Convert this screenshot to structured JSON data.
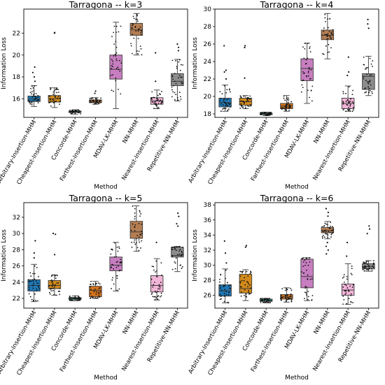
{
  "methods": [
    "Arbitrary-Insertion-MHM",
    "Cheapest-Insertion-MHM",
    "Concorde-MHM",
    "Farthest-Insertion-MHM",
    "MDAV-LK-MHM",
    "NN-MHM",
    "Nearest-Insertion-MHM",
    "Repetitive-NN-MHM"
  ],
  "colors": [
    "#1f77b4",
    "#d28a1c",
    "#1aa085",
    "#d1731d",
    "#c77ec0",
    "#b57e52",
    "#f2b4d8",
    "#8c8c8c"
  ],
  "chart_data": [
    {
      "type": "box",
      "title": "Tarragona -- k=3",
      "xlabel": "Method",
      "ylabel": "Information Loss",
      "ylim": [
        14.3,
        24.2
      ],
      "yticks": [
        16,
        18,
        20,
        22
      ],
      "boxes": [
        {
          "whislo": 15.3,
          "q1": 15.75,
          "med": 16.0,
          "q3": 16.25,
          "whishi": 17.2,
          "fliers": [
            18.0,
            18.4,
            18.9,
            17.6
          ]
        },
        {
          "whislo": 15.2,
          "q1": 15.7,
          "med": 16.0,
          "q3": 16.3,
          "whishi": 17.0,
          "fliers": [
            22.0,
            22.05
          ]
        },
        {
          "whislo": 14.6,
          "q1": 14.75,
          "med": 14.8,
          "q3": 14.88,
          "whishi": 15.0,
          "fliers": []
        },
        {
          "whislo": 15.5,
          "q1": 15.65,
          "med": 15.8,
          "q3": 15.9,
          "whishi": 16.1,
          "fliers": [
            16.5,
            16.7
          ]
        },
        {
          "whislo": 15.1,
          "q1": 17.8,
          "med": 18.7,
          "q3": 20.0,
          "whishi": 23.0,
          "fliers": []
        },
        {
          "whislo": 20.0,
          "q1": 21.8,
          "med": 22.3,
          "q3": 22.9,
          "whishi": 23.8,
          "fliers": []
        },
        {
          "whislo": 15.1,
          "q1": 15.5,
          "med": 15.8,
          "q3": 16.1,
          "whishi": 16.8,
          "fliers": [
            20.2,
            17.6
          ]
        },
        {
          "whislo": 15.8,
          "q1": 17.2,
          "med": 17.6,
          "q3": 18.3,
          "whishi": 19.6,
          "fliers": [
            20.7,
            21.0,
            20.4
          ]
        }
      ]
    },
    {
      "type": "box",
      "title": "Tarragona -- k=4",
      "xlabel": "Method",
      "ylabel": "Information Loss",
      "ylim": [
        17.6,
        30.0
      ],
      "yticks": [
        18,
        20,
        22,
        24,
        26,
        28,
        30
      ],
      "boxes": [
        {
          "whislo": 18.3,
          "q1": 18.8,
          "med": 19.3,
          "q3": 19.8,
          "whishi": 21.3,
          "fliers": [
            22.8,
            23.0,
            25.8,
            22.0
          ]
        },
        {
          "whislo": 18.6,
          "q1": 19.0,
          "med": 19.4,
          "q3": 19.8,
          "whishi": 20.1,
          "fliers": [
            25.6,
            25.8,
            22.1
          ]
        },
        {
          "whislo": 17.8,
          "q1": 17.9,
          "med": 18.0,
          "q3": 18.1,
          "whishi": 18.2,
          "fliers": []
        },
        {
          "whislo": 18.3,
          "q1": 18.6,
          "med": 18.9,
          "q3": 19.2,
          "whishi": 20.1,
          "fliers": []
        },
        {
          "whislo": 19.2,
          "q1": 21.8,
          "med": 23.2,
          "q3": 24.3,
          "whishi": 26.1,
          "fliers": []
        },
        {
          "whislo": 24.3,
          "q1": 26.5,
          "med": 27.0,
          "q3": 27.6,
          "whishi": 29.5,
          "fliers": []
        },
        {
          "whislo": 18.3,
          "q1": 18.6,
          "med": 19.2,
          "q3": 19.8,
          "whishi": 21.2,
          "fliers": [
            24.5,
            22.8,
            22.4
          ]
        },
        {
          "whislo": 20.1,
          "q1": 20.8,
          "med": 22.3,
          "q3": 22.6,
          "whishi": 24.6,
          "fliers": [
            27.8,
            28.3,
            28.8
          ]
        }
      ]
    },
    {
      "type": "box",
      "title": "Tarragona -- k=5",
      "xlabel": "Method",
      "ylabel": "Information Loss",
      "ylim": [
        20.8,
        33.8
      ],
      "yticks": [
        22,
        24,
        26,
        28,
        30,
        32
      ],
      "boxes": [
        {
          "whislo": 21.6,
          "q1": 22.9,
          "med": 23.6,
          "q3": 24.3,
          "whishi": 26.2,
          "fliers": [
            29.1,
            27.6,
            27.0
          ]
        },
        {
          "whislo": 22.4,
          "q1": 23.2,
          "med": 23.6,
          "q3": 24.2,
          "whishi": 24.9,
          "fliers": [
            29.9,
            30.0,
            27.4
          ]
        },
        {
          "whislo": 21.7,
          "q1": 21.85,
          "med": 22.0,
          "q3": 22.1,
          "whishi": 22.3,
          "fliers": []
        },
        {
          "whislo": 22.0,
          "q1": 22.2,
          "med": 23.0,
          "q3": 23.5,
          "whishi": 24.1,
          "fliers": []
        },
        {
          "whislo": 22.9,
          "q1": 25.4,
          "med": 26.1,
          "q3": 27.1,
          "whishi": 28.9,
          "fliers": []
        },
        {
          "whislo": 27.8,
          "q1": 29.4,
          "med": 30.2,
          "q3": 31.5,
          "whishi": 33.4,
          "fliers": []
        },
        {
          "whislo": 21.8,
          "q1": 22.8,
          "med": 23.6,
          "q3": 24.8,
          "whishi": 26.9,
          "fliers": [
            28.9
          ]
        },
        {
          "whislo": 25.3,
          "q1": 27.1,
          "med": 27.3,
          "q3": 28.3,
          "whishi": 28.4,
          "fliers": [
            31.2,
            32.1,
            32.5,
            30.9
          ]
        }
      ]
    },
    {
      "type": "box",
      "title": "Tarragona -- k=6",
      "xlabel": "Method",
      "ylabel": "Information Loss",
      "ylim": [
        24.3,
        38.3
      ],
      "yticks": [
        26,
        28,
        30,
        32,
        34,
        36,
        38
      ],
      "boxes": [
        {
          "whislo": 25.0,
          "q1": 25.9,
          "med": 26.6,
          "q3": 27.4,
          "whishi": 29.5,
          "fliers": [
            31.6,
            33.2,
            30.3
          ]
        },
        {
          "whislo": 25.3,
          "q1": 26.3,
          "med": 26.9,
          "q3": 28.8,
          "whishi": 29.4,
          "fliers": [
            32.4,
            32.6
          ]
        },
        {
          "whislo": 25.0,
          "q1": 25.2,
          "med": 25.3,
          "q3": 25.5,
          "whishi": 25.6,
          "fliers": []
        },
        {
          "whislo": 25.1,
          "q1": 25.5,
          "med": 25.8,
          "q3": 26.1,
          "whishi": 27.0,
          "fliers": []
        },
        {
          "whislo": 25.3,
          "q1": 27.0,
          "med": 28.5,
          "q3": 30.8,
          "whishi": 31.0,
          "fliers": []
        },
        {
          "whislo": 33.5,
          "q1": 34.3,
          "med": 34.6,
          "q3": 35.0,
          "whishi": 35.8,
          "fliers": [
            31.5,
            32.0,
            32.5,
            33.0,
            36.5,
            37.0,
            37.5
          ]
        },
        {
          "whislo": 24.8,
          "q1": 26.0,
          "med": 26.7,
          "q3": 27.5,
          "whishi": 30.2,
          "fliers": [
            31.2,
            33.0
          ]
        },
        {
          "whislo": 29.2,
          "q1": 29.5,
          "med": 29.8,
          "q3": 30.2,
          "whishi": 30.6,
          "fliers": [
            34.8,
            35.2,
            34.2
          ]
        }
      ]
    }
  ]
}
